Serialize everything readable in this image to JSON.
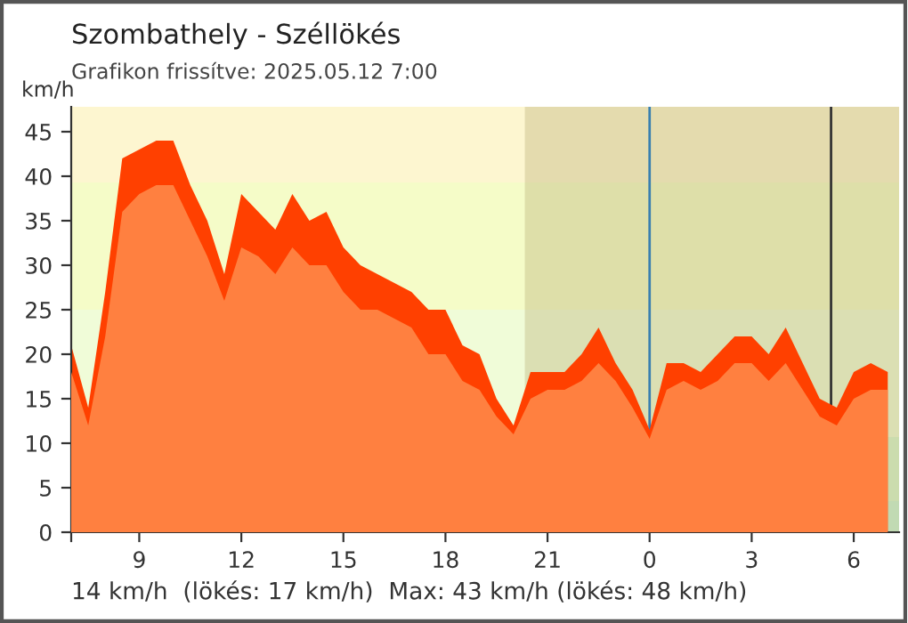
{
  "chart_data": {
    "type": "area",
    "title": "Szombathely - Széllökés",
    "subtitle": "Grafikon frissítve: 2025.05.12 7:00",
    "ylabel": "km/h",
    "annotations": [
      "14 km/h  (lökés: 17 km/h)  Max: 43 km/h (lökés: 48 km/h)"
    ],
    "x": [
      "2025-05-11T07:00",
      "2025-05-11T07:30",
      "2025-05-11T08:00",
      "2025-05-11T08:30",
      "2025-05-11T09:00",
      "2025-05-11T09:30",
      "2025-05-11T10:00",
      "2025-05-11T10:30",
      "2025-05-11T11:00",
      "2025-05-11T11:30",
      "2025-05-11T12:00",
      "2025-05-11T12:30",
      "2025-05-11T13:00",
      "2025-05-11T13:30",
      "2025-05-11T14:00",
      "2025-05-11T14:30",
      "2025-05-11T15:00",
      "2025-05-11T15:30",
      "2025-05-11T16:00",
      "2025-05-11T16:30",
      "2025-05-11T17:00",
      "2025-05-11T17:30",
      "2025-05-11T18:00",
      "2025-05-11T18:30",
      "2025-05-11T19:00",
      "2025-05-11T19:30",
      "2025-05-11T20:00",
      "2025-05-11T20:30",
      "2025-05-11T21:00",
      "2025-05-11T21:30",
      "2025-05-11T22:00",
      "2025-05-11T22:30",
      "2025-05-11T23:00",
      "2025-05-11T23:30",
      "2025-05-12T00:00",
      "2025-05-12T00:30",
      "2025-05-12T01:00",
      "2025-05-12T01:30",
      "2025-05-12T02:00",
      "2025-05-12T02:30",
      "2025-05-12T03:00",
      "2025-05-12T03:30",
      "2025-05-12T04:00",
      "2025-05-12T04:30",
      "2025-05-12T05:00",
      "2025-05-12T05:30",
      "2025-05-12T06:00",
      "2025-05-12T06:30",
      "2025-05-12T07:00"
    ],
    "series": [
      {
        "color": "#ff4000",
        "values": [
          21,
          14,
          27,
          42,
          43,
          44,
          44,
          39,
          35,
          29,
          38,
          36,
          34,
          38,
          35,
          36,
          32,
          30,
          29,
          28,
          27,
          25,
          25,
          21,
          20,
          15,
          12,
          18,
          18,
          18,
          20,
          23,
          19,
          16,
          11.5,
          19,
          19,
          18,
          20,
          22,
          22,
          20,
          23,
          19,
          15,
          14,
          18,
          19,
          18
        ]
      },
      {
        "color": "#ff8040",
        "values": [
          18,
          12,
          22,
          36,
          38,
          39,
          39,
          35,
          31,
          26,
          32,
          31,
          29,
          32,
          30,
          30,
          27,
          25,
          25,
          24,
          23,
          20,
          20,
          17,
          16,
          13,
          11,
          15,
          16,
          16,
          17,
          19,
          17,
          14,
          10.5,
          16,
          17,
          16,
          17,
          19,
          19,
          17,
          19,
          16,
          13,
          12,
          15,
          16,
          16
        ]
      }
    ],
    "xlim": [
      "2025-05-11T07:00",
      "2025-05-12T07:20"
    ],
    "xticks": [
      {
        "value": "2025-05-11T07:00",
        "label": null
      },
      {
        "value": "2025-05-11T09:00",
        "label": "9"
      },
      {
        "value": "2025-05-11T12:00",
        "label": "12"
      },
      {
        "value": "2025-05-11T15:00",
        "label": "15"
      },
      {
        "value": "2025-05-11T18:00",
        "label": "18"
      },
      {
        "value": "2025-05-11T21:00",
        "label": "21"
      },
      {
        "value": "2025-05-12T00:00",
        "label": "0"
      },
      {
        "value": "2025-05-12T03:00",
        "label": "3"
      },
      {
        "value": "2025-05-12T06:00",
        "label": "6"
      }
    ],
    "ylim": [
      0,
      47.8
    ],
    "yticks": [
      0,
      5,
      10,
      15,
      20,
      25,
      30,
      35,
      40,
      45
    ],
    "bands": [
      {
        "axis": "y",
        "from": 0,
        "to": 3.5,
        "color": "#c8f5d8"
      },
      {
        "axis": "y",
        "from": 3.5,
        "to": 10.7,
        "color": "#d8f8d0"
      },
      {
        "axis": "y",
        "from": 10.7,
        "to": 25,
        "color": "#f0fcd8"
      },
      {
        "axis": "y",
        "from": 25,
        "to": 39.3,
        "color": "#f5fcc8"
      },
      {
        "axis": "y",
        "from": 39.3,
        "to": 47.8,
        "color": "#fdf6d0"
      },
      {
        "axis": "x",
        "from": "2025-05-11T20:20",
        "to": "2025-05-12T07:20",
        "color": "#b4a870"
      }
    ],
    "ref_lines": [
      {
        "axis": "x",
        "value": "2025-05-12T00:00",
        "color": "#3a80b0"
      },
      {
        "axis": "x",
        "value": "2025-05-12T05:20",
        "color": "#333333"
      }
    ],
    "grid": false,
    "legend": false
  }
}
